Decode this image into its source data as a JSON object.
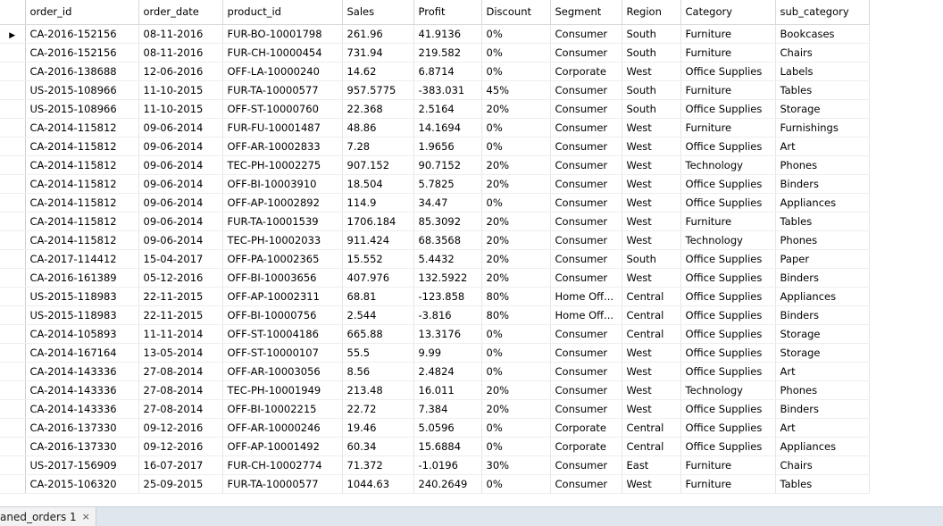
{
  "grid": {
    "columns": [
      "order_id",
      "order_date",
      "product_id",
      "Sales",
      "Profit",
      "Discount",
      "Segment",
      "Region",
      "Category",
      "sub_category"
    ],
    "current_row_marker": "▶",
    "rows": [
      [
        "CA-2016-152156",
        "08-11-2016",
        "FUR-BO-10001798",
        "261.96",
        "41.9136",
        "0%",
        "Consumer",
        "South",
        "Furniture",
        "Bookcases"
      ],
      [
        "CA-2016-152156",
        "08-11-2016",
        "FUR-CH-10000454",
        "731.94",
        "219.582",
        "0%",
        "Consumer",
        "South",
        "Furniture",
        "Chairs"
      ],
      [
        "CA-2016-138688",
        "12-06-2016",
        "OFF-LA-10000240",
        "14.62",
        "6.8714",
        "0%",
        "Corporate",
        "West",
        "Office Supplies",
        "Labels"
      ],
      [
        "US-2015-108966",
        "11-10-2015",
        "FUR-TA-10000577",
        "957.5775",
        "-383.031",
        "45%",
        "Consumer",
        "South",
        "Furniture",
        "Tables"
      ],
      [
        "US-2015-108966",
        "11-10-2015",
        "OFF-ST-10000760",
        "22.368",
        "2.5164",
        "20%",
        "Consumer",
        "South",
        "Office Supplies",
        "Storage"
      ],
      [
        "CA-2014-115812",
        "09-06-2014",
        "FUR-FU-10001487",
        "48.86",
        "14.1694",
        "0%",
        "Consumer",
        "West",
        "Furniture",
        "Furnishings"
      ],
      [
        "CA-2014-115812",
        "09-06-2014",
        "OFF-AR-10002833",
        "7.28",
        "1.9656",
        "0%",
        "Consumer",
        "West",
        "Office Supplies",
        "Art"
      ],
      [
        "CA-2014-115812",
        "09-06-2014",
        "TEC-PH-10002275",
        "907.152",
        "90.7152",
        "20%",
        "Consumer",
        "West",
        "Technology",
        "Phones"
      ],
      [
        "CA-2014-115812",
        "09-06-2014",
        "OFF-BI-10003910",
        "18.504",
        "5.7825",
        "20%",
        "Consumer",
        "West",
        "Office Supplies",
        "Binders"
      ],
      [
        "CA-2014-115812",
        "09-06-2014",
        "OFF-AP-10002892",
        "114.9",
        "34.47",
        "0%",
        "Consumer",
        "West",
        "Office Supplies",
        "Appliances"
      ],
      [
        "CA-2014-115812",
        "09-06-2014",
        "FUR-TA-10001539",
        "1706.184",
        "85.3092",
        "20%",
        "Consumer",
        "West",
        "Furniture",
        "Tables"
      ],
      [
        "CA-2014-115812",
        "09-06-2014",
        "TEC-PH-10002033",
        "911.424",
        "68.3568",
        "20%",
        "Consumer",
        "West",
        "Technology",
        "Phones"
      ],
      [
        "CA-2017-114412",
        "15-04-2017",
        "OFF-PA-10002365",
        "15.552",
        "5.4432",
        "20%",
        "Consumer",
        "South",
        "Office Supplies",
        "Paper"
      ],
      [
        "CA-2016-161389",
        "05-12-2016",
        "OFF-BI-10003656",
        "407.976",
        "132.5922",
        "20%",
        "Consumer",
        "West",
        "Office Supplies",
        "Binders"
      ],
      [
        "US-2015-118983",
        "22-11-2015",
        "OFF-AP-10002311",
        "68.81",
        "-123.858",
        "80%",
        "Home Off...",
        "Central",
        "Office Supplies",
        "Appliances"
      ],
      [
        "US-2015-118983",
        "22-11-2015",
        "OFF-BI-10000756",
        "2.544",
        "-3.816",
        "80%",
        "Home Off...",
        "Central",
        "Office Supplies",
        "Binders"
      ],
      [
        "CA-2014-105893",
        "11-11-2014",
        "OFF-ST-10004186",
        "665.88",
        "13.3176",
        "0%",
        "Consumer",
        "Central",
        "Office Supplies",
        "Storage"
      ],
      [
        "CA-2014-167164",
        "13-05-2014",
        "OFF-ST-10000107",
        "55.5",
        "9.99",
        "0%",
        "Consumer",
        "West",
        "Office Supplies",
        "Storage"
      ],
      [
        "CA-2014-143336",
        "27-08-2014",
        "OFF-AR-10003056",
        "8.56",
        "2.4824",
        "0%",
        "Consumer",
        "West",
        "Office Supplies",
        "Art"
      ],
      [
        "CA-2014-143336",
        "27-08-2014",
        "TEC-PH-10001949",
        "213.48",
        "16.011",
        "20%",
        "Consumer",
        "West",
        "Technology",
        "Phones"
      ],
      [
        "CA-2014-143336",
        "27-08-2014",
        "OFF-BI-10002215",
        "22.72",
        "7.384",
        "20%",
        "Consumer",
        "West",
        "Office Supplies",
        "Binders"
      ],
      [
        "CA-2016-137330",
        "09-12-2016",
        "OFF-AR-10000246",
        "19.46",
        "5.0596",
        "0%",
        "Corporate",
        "Central",
        "Office Supplies",
        "Art"
      ],
      [
        "CA-2016-137330",
        "09-12-2016",
        "OFF-AP-10001492",
        "60.34",
        "15.6884",
        "0%",
        "Corporate",
        "Central",
        "Office Supplies",
        "Appliances"
      ],
      [
        "US-2017-156909",
        "16-07-2017",
        "FUR-CH-10002774",
        "71.372",
        "-1.0196",
        "30%",
        "Consumer",
        "East",
        "Furniture",
        "Chairs"
      ],
      [
        "CA-2015-106320",
        "25-09-2015",
        "FUR-TA-10000577",
        "1044.63",
        "240.2649",
        "0%",
        "Consumer",
        "West",
        "Furniture",
        "Tables"
      ]
    ]
  },
  "tabs": [
    {
      "label": "aned_orders 1",
      "close_glyph": "×"
    }
  ]
}
